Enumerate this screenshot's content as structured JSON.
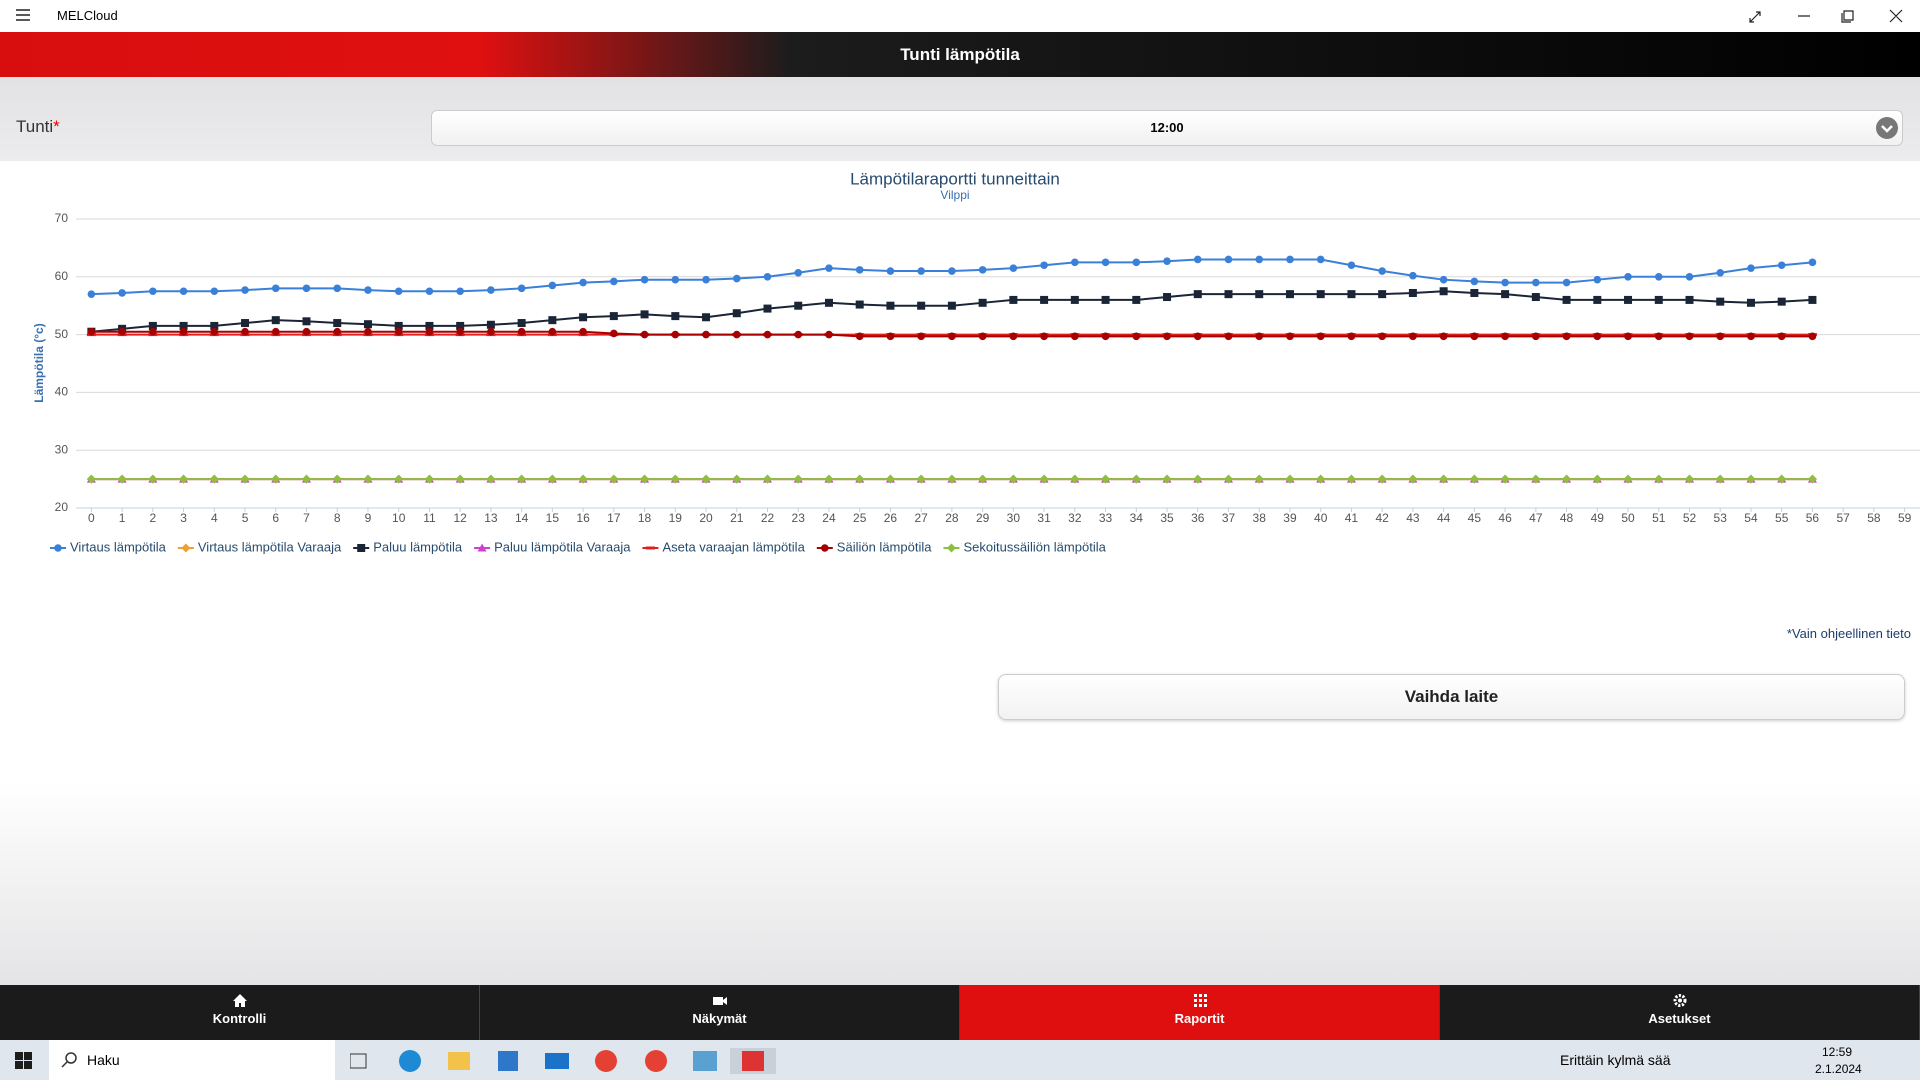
{
  "app": {
    "title": "MELCloud"
  },
  "header": {
    "title": "Tunti lämpötila"
  },
  "form": {
    "label": "Tunti",
    "required": "*",
    "value": "12:00"
  },
  "chart_data": {
    "type": "line",
    "title": "Lämpötilaraportti tunneittain",
    "subtitle": "Vilppi",
    "y_label": "Lämpötila (°c)",
    "x": [
      0,
      1,
      2,
      3,
      4,
      5,
      6,
      7,
      8,
      9,
      10,
      11,
      12,
      13,
      14,
      15,
      16,
      17,
      18,
      19,
      20,
      21,
      22,
      23,
      24,
      25,
      26,
      27,
      28,
      29,
      30,
      31,
      32,
      33,
      34,
      35,
      36,
      37,
      38,
      39,
      40,
      41,
      42,
      43,
      44,
      45,
      46,
      47,
      48,
      49,
      50,
      51,
      52,
      53,
      54,
      55,
      56
    ],
    "xlim": [
      -0.5,
      59.5
    ],
    "xticks": [
      0,
      1,
      2,
      3,
      4,
      5,
      6,
      7,
      8,
      9,
      10,
      11,
      12,
      13,
      14,
      15,
      16,
      17,
      18,
      19,
      20,
      21,
      22,
      23,
      24,
      25,
      26,
      27,
      28,
      29,
      30,
      31,
      32,
      33,
      34,
      35,
      36,
      37,
      38,
      39,
      40,
      41,
      42,
      43,
      44,
      45,
      46,
      47,
      48,
      49,
      50,
      51,
      52,
      53,
      54,
      55,
      56,
      57,
      58,
      59
    ],
    "ylim": [
      20,
      70
    ],
    "yticks": [
      20,
      30,
      40,
      50,
      60,
      70
    ],
    "grid": true,
    "series": [
      {
        "name": "Virtaus lämpötila",
        "color": "#3a80d8",
        "marker": "circle",
        "values": [
          57,
          57.2,
          57.5,
          57.5,
          57.5,
          57.7,
          58,
          58,
          58,
          57.7,
          57.5,
          57.5,
          57.5,
          57.7,
          58,
          58.5,
          59,
          59.2,
          59.5,
          59.5,
          59.5,
          59.7,
          60,
          60.7,
          61.5,
          61.2,
          61,
          61,
          61,
          61.2,
          61.5,
          62,
          62.5,
          62.5,
          62.5,
          62.7,
          63,
          63,
          63,
          63,
          63,
          62,
          61,
          60.2,
          59.5,
          59.2,
          59,
          59,
          59,
          59.5,
          60,
          60,
          60,
          60.7,
          61.5,
          62,
          62.5
        ]
      },
      {
        "name": "Virtaus lämpötila Varaaja",
        "color": "#f0a030",
        "marker": "diamond",
        "values": [
          25,
          25,
          25,
          25,
          25,
          25,
          25,
          25,
          25,
          25,
          25,
          25,
          25,
          25,
          25,
          25,
          25,
          25,
          25,
          25,
          25,
          25,
          25,
          25,
          25,
          25,
          25,
          25,
          25,
          25,
          25,
          25,
          25,
          25,
          25,
          25,
          25,
          25,
          25,
          25,
          25,
          25,
          25,
          25,
          25,
          25,
          25,
          25,
          25,
          25,
          25,
          25,
          25,
          25,
          25,
          25,
          25
        ]
      },
      {
        "name": "Paluu lämpötila",
        "color": "#1a2535",
        "marker": "square",
        "values": [
          50.5,
          51,
          51.5,
          51.5,
          51.5,
          52,
          52.5,
          52.3,
          52,
          51.8,
          51.5,
          51.5,
          51.5,
          51.7,
          52,
          52.5,
          53,
          53.2,
          53.5,
          53.2,
          53,
          53.7,
          54.5,
          55,
          55.5,
          55.2,
          55,
          55,
          55,
          55.5,
          56,
          56,
          56,
          56,
          56,
          56.5,
          57,
          57,
          57,
          57,
          57,
          57,
          57,
          57.2,
          57.5,
          57.2,
          57,
          56.5,
          56,
          56,
          56,
          56,
          56,
          55.7,
          55.5,
          55.7,
          56
        ]
      },
      {
        "name": "Paluu lämpötila Varaaja",
        "color": "#d040d0",
        "marker": "triangle",
        "values": [
          25,
          25,
          25,
          25,
          25,
          25,
          25,
          25,
          25,
          25,
          25,
          25,
          25,
          25,
          25,
          25,
          25,
          25,
          25,
          25,
          25,
          25,
          25,
          25,
          25,
          25,
          25,
          25,
          25,
          25,
          25,
          25,
          25,
          25,
          25,
          25,
          25,
          25,
          25,
          25,
          25,
          25,
          25,
          25,
          25,
          25,
          25,
          25,
          25,
          25,
          25,
          25,
          25,
          25,
          25,
          25,
          25
        ]
      },
      {
        "name": "Aseta varaajan lämpötila",
        "color": "#e02020",
        "marker": "dash",
        "values": [
          50,
          50,
          50,
          50,
          50,
          50,
          50,
          50,
          50,
          50,
          50,
          50,
          50,
          50,
          50,
          50,
          50,
          50,
          50,
          50,
          50,
          50,
          50,
          50,
          50,
          50,
          50,
          50,
          50,
          50,
          50,
          50,
          50,
          50,
          50,
          50,
          50,
          50,
          50,
          50,
          50,
          50,
          50,
          50,
          50,
          50,
          50,
          50,
          50,
          50,
          50,
          50,
          50,
          50,
          50,
          50,
          50
        ]
      },
      {
        "name": "Säiliön lämpötila",
        "color": "#a80000",
        "marker": "circle",
        "values": [
          50.5,
          50.5,
          50.5,
          50.5,
          50.5,
          50.5,
          50.5,
          50.5,
          50.5,
          50.5,
          50.5,
          50.5,
          50.5,
          50.5,
          50.5,
          50.5,
          50.5,
          50.2,
          50,
          50,
          50,
          50,
          50,
          50,
          50,
          49.7,
          49.7,
          49.7,
          49.7,
          49.7,
          49.7,
          49.7,
          49.7,
          49.7,
          49.7,
          49.7,
          49.7,
          49.7,
          49.7,
          49.7,
          49.7,
          49.7,
          49.7,
          49.7,
          49.7,
          49.7,
          49.7,
          49.7,
          49.7,
          49.7,
          49.7,
          49.7,
          49.7,
          49.7,
          49.7,
          49.7,
          49.7
        ]
      },
      {
        "name": "Sekoitussäiliön lämpötila",
        "color": "#8dc03f",
        "marker": "diamond",
        "values": [
          25,
          25,
          25,
          25,
          25,
          25,
          25,
          25,
          25,
          25,
          25,
          25,
          25,
          25,
          25,
          25,
          25,
          25,
          25,
          25,
          25,
          25,
          25,
          25,
          25,
          25,
          25,
          25,
          25,
          25,
          25,
          25,
          25,
          25,
          25,
          25,
          25,
          25,
          25,
          25,
          25,
          25,
          25,
          25,
          25,
          25,
          25,
          25,
          25,
          25,
          25,
          25,
          25,
          25,
          25,
          25,
          25
        ]
      }
    ]
  },
  "note": "*Vain ohjeellinen tieto",
  "button": "Vaihda laite",
  "nav": [
    "Kontrolli",
    "Näkymät",
    "Raportit",
    "Asetukset"
  ],
  "taskbar": {
    "search": "Haku",
    "weather": "Erittäin kylmä sää",
    "time": "12:59",
    "date": "2.1.2024"
  }
}
